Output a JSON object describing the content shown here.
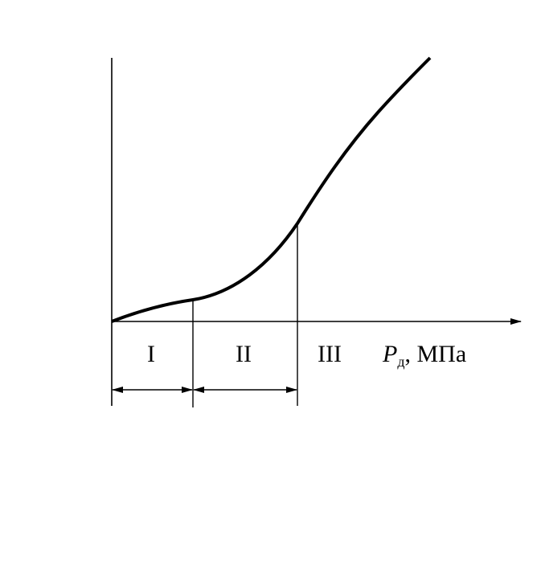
{
  "regions": [
    "I",
    "II",
    "III"
  ],
  "x_axis_label": {
    "symbol": "P",
    "subscript": "д",
    "rest": ", МПа"
  }
}
